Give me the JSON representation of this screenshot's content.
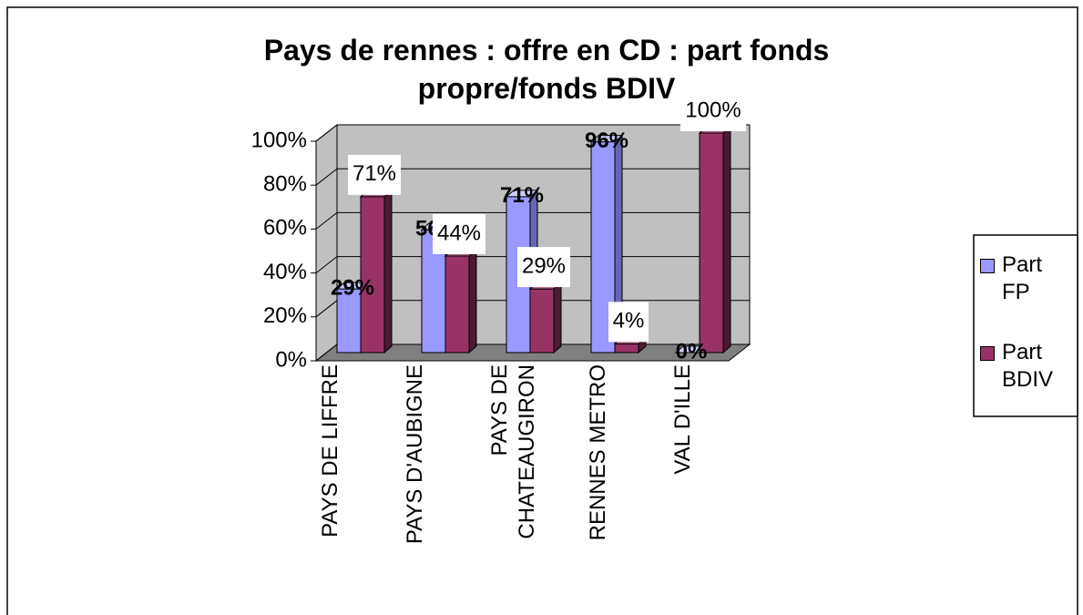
{
  "chart_data": {
    "type": "bar3d",
    "title": "Pays de rennes : offre en CD : part fonds propre/fonds BDIV",
    "categories": [
      "PAYS  DE LIFFRE",
      "PAYS D'AUBIGNE",
      "PAYS DE CHATEAUGIRON",
      "RENNES METRO",
      "VAL D'ILLE"
    ],
    "series": [
      {
        "name": "Part FP",
        "color": "#9999ff",
        "values": [
          29,
          56,
          71,
          96,
          0
        ],
        "value_labels": [
          "29%",
          "56%",
          "71%",
          "96%",
          "0%"
        ]
      },
      {
        "name": "Part BDIV",
        "color": "#993366",
        "values": [
          71,
          44,
          29,
          4,
          100
        ],
        "value_labels": [
          "71%",
          "44%",
          "29%",
          "4%",
          "100%"
        ]
      }
    ],
    "ylim": [
      0,
      100
    ],
    "yticks": [
      {
        "value": 0,
        "label": "0%"
      },
      {
        "value": 20,
        "label": "20%"
      },
      {
        "value": 40,
        "label": "40%"
      },
      {
        "value": 60,
        "label": "60%"
      },
      {
        "value": 80,
        "label": "80%"
      },
      {
        "value": 100,
        "label": "100%"
      }
    ],
    "grid": true,
    "legend": "right"
  }
}
